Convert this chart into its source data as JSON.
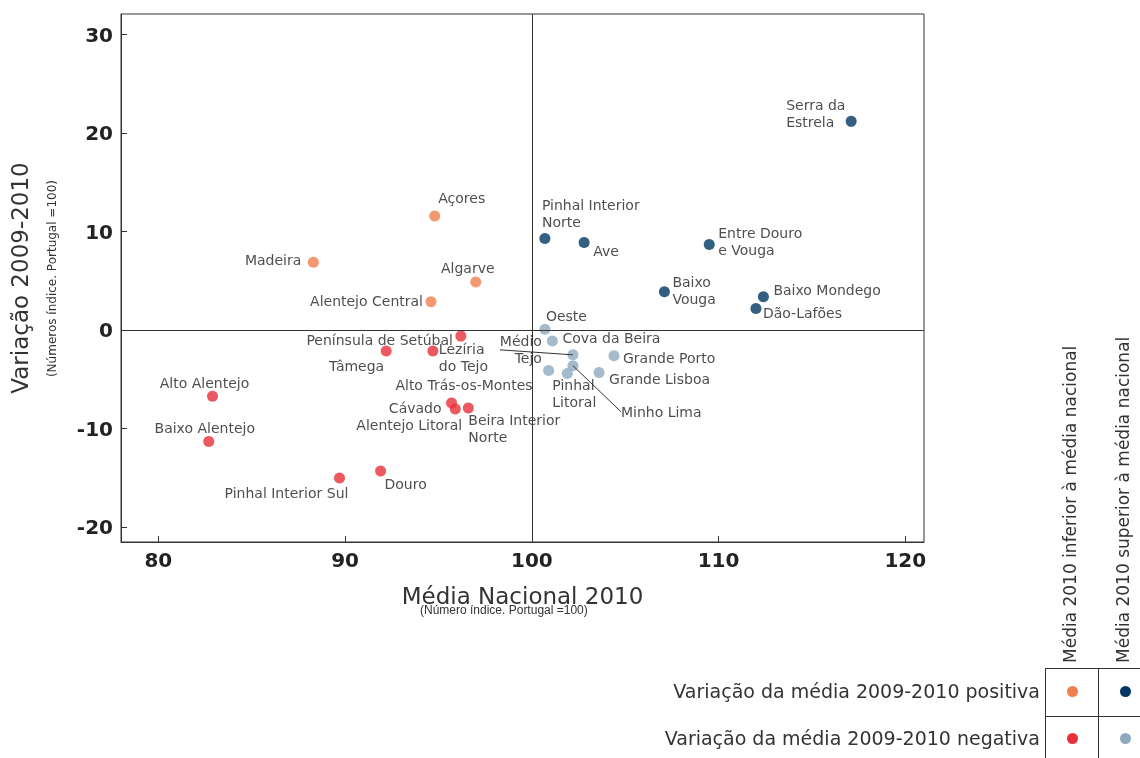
{
  "chart_data": {
    "type": "scatter",
    "xlabel": "Média Nacional 2010",
    "ylabel": "Variação 2009-2010",
    "xlim": [
      78,
      121
    ],
    "ylim": [
      -21.5,
      32.1
    ],
    "xticks": [
      80,
      90,
      100,
      110,
      120
    ],
    "yticks": [
      -20,
      -10,
      0,
      10,
      20,
      30
    ],
    "grid": false,
    "marker": "circle",
    "ref_lines": [
      {
        "axis": "x",
        "value": 100,
        "color": "#333333"
      },
      {
        "axis": "y",
        "value": 0,
        "color": "#333333"
      }
    ],
    "series": [
      {
        "color": "#f07f4f",
        "x": [
          94.8,
          88.3,
          97.0,
          94.6
        ],
        "values": [
          11.6,
          6.9,
          4.9,
          2.9
        ]
      },
      {
        "color": "#003764",
        "x": [
          117.1,
          100.7,
          102.8,
          109.5,
          107.1,
          112.4,
          112.0
        ],
        "values": [
          21.2,
          9.3,
          8.9,
          8.7,
          3.9,
          3.4,
          2.2
        ]
      },
      {
        "color": "#e8303a",
        "x": [
          96.2,
          92.2,
          94.7,
          95.7,
          95.9,
          96.6,
          82.9,
          82.7,
          89.7,
          91.9
        ],
        "values": [
          -0.6,
          -2.1,
          -2.1,
          -7.4,
          -8.0,
          -7.9,
          -6.7,
          -11.3,
          -15.0,
          -14.3
        ]
      },
      {
        "color": "#8faabf",
        "x": [
          100.7,
          101.1,
          102.2,
          100.9,
          101.9,
          102.2,
          103.6,
          104.4
        ],
        "values": [
          0.1,
          -1.1,
          -2.5,
          -4.1,
          -4.4,
          -3.6,
          -4.3,
          -2.6
        ]
      }
    ],
    "annotations": [
      {
        "text": "Serra da\nEstrela",
        "x": 117.1,
        "y": 21.2
      },
      {
        "text": "Açores",
        "x": 94.8,
        "y": 11.6
      },
      {
        "text": "Madeira",
        "x": 88.3,
        "y": 6.9
      },
      {
        "text": "Algarve",
        "x": 97.0,
        "y": 4.9
      },
      {
        "text": "Alentejo Central",
        "x": 94.6,
        "y": 2.9
      },
      {
        "text": "Pinhal Interior\nNorte",
        "x": 100.7,
        "y": 9.3
      },
      {
        "text": "Ave",
        "x": 102.8,
        "y": 8.9
      },
      {
        "text": "Entre Douro\ne Vouga",
        "x": 109.5,
        "y": 8.7
      },
      {
        "text": "Baixo\nVouga",
        "x": 107.1,
        "y": 3.9
      },
      {
        "text": "Baixo Mondego",
        "x": 112.4,
        "y": 3.4
      },
      {
        "text": "Dão-Lafões",
        "x": 112.0,
        "y": 2.2
      },
      {
        "text": "Oeste",
        "x": 100.7,
        "y": 0.1
      },
      {
        "text": "Cova da Beira",
        "x": 101.1,
        "y": -1.1
      },
      {
        "text": "Médio\nTejo",
        "x": 102.2,
        "y": -2.5
      },
      {
        "text": "Alto Trás-os-Montes",
        "x": 100.9,
        "y": -4.1
      },
      {
        "text": "Pinhal\nLitoral",
        "x": 101.9,
        "y": -4.4
      },
      {
        "text": "Minho Lima",
        "x": 102.2,
        "y": -3.6
      },
      {
        "text": "Grande Lisboa",
        "x": 103.6,
        "y": -4.3
      },
      {
        "text": "Grande Porto",
        "x": 104.4,
        "y": -2.6
      },
      {
        "text": "Península de Setúbal",
        "x": 96.2,
        "y": -0.6
      },
      {
        "text": "Tâmega",
        "x": 92.2,
        "y": -2.1
      },
      {
        "text": "Lezíria\ndo Tejo",
        "x": 94.7,
        "y": -2.1
      },
      {
        "text": "Cávado",
        "x": 95.7,
        "y": -7.4
      },
      {
        "text": "Alentejo Litoral",
        "x": 95.9,
        "y": -8.0
      },
      {
        "text": "Beira Interior\nNorte",
        "x": 96.6,
        "y": -7.9
      },
      {
        "text": "Alto Alentejo",
        "x": 82.9,
        "y": -6.7
      },
      {
        "text": "Baixo Alentejo",
        "x": 82.7,
        "y": -11.3
      },
      {
        "text": "Pinhal Interior Sul",
        "x": 89.7,
        "y": -15.0
      },
      {
        "text": "Douro",
        "x": 91.9,
        "y": -14.3
      },
      "(Número índice. Portugal =100)",
      "(Números índice. Portugal =100)",
      "Média 2010 inferior à média nacional",
      "Média 2010 superior à média nacional",
      "Variação da média 2009-2010 positiva",
      "Variação da média 2009-2010 negativa"
    ]
  }
}
